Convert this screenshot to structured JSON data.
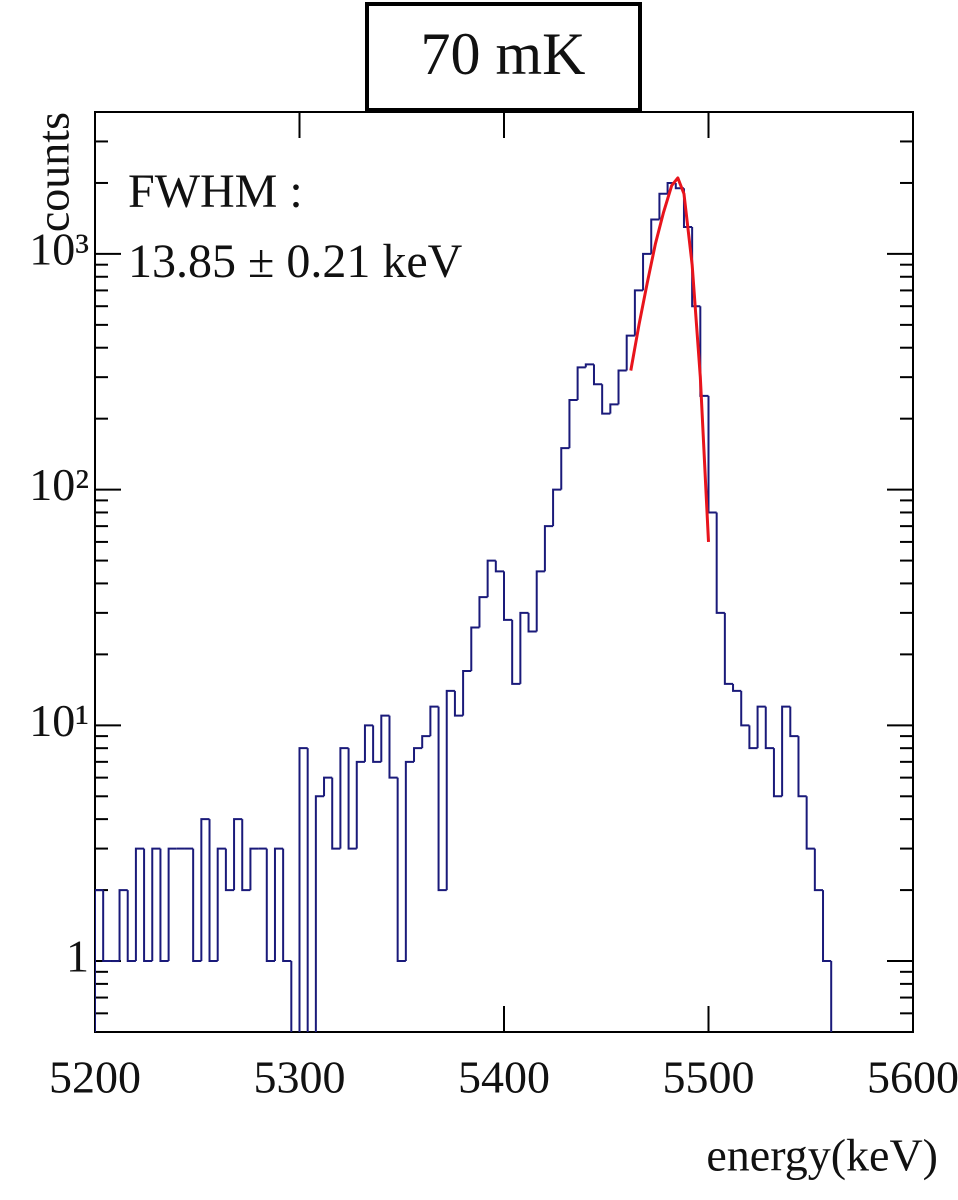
{
  "chart_data": {
    "type": "histogram",
    "title": "70 mK",
    "y_label": "counts",
    "x_label": "energy(keV)",
    "annotations": [
      "FWHM :",
      "13.85 ± 0.21 keV"
    ],
    "color": "#1a1a7a",
    "log_y": true,
    "xlim": [
      5200,
      5600
    ],
    "ylim": [
      0.5,
      4000
    ],
    "xticks": [
      5200,
      5300,
      5400,
      5500,
      5600
    ],
    "yticks": [
      1,
      {
        "value": 10,
        "label": "10¹"
      },
      {
        "value": 100,
        "label": "10²"
      },
      {
        "value": 1000,
        "label": "10³"
      }
    ],
    "bins": [
      5200,
      5204,
      5208,
      5212,
      5216,
      5220,
      5224,
      5228,
      5232,
      5236,
      5240,
      5244,
      5248,
      5252,
      5256,
      5260,
      5264,
      5268,
      5272,
      5276,
      5280,
      5284,
      5288,
      5292,
      5296,
      5300,
      5304,
      5308,
      5312,
      5316,
      5320,
      5324,
      5328,
      5332,
      5336,
      5340,
      5344,
      5348,
      5352,
      5356,
      5360,
      5364,
      5368,
      5372,
      5376,
      5380,
      5384,
      5388,
      5392,
      5396,
      5400,
      5404,
      5408,
      5412,
      5416,
      5420,
      5424,
      5428,
      5432,
      5436,
      5440,
      5444,
      5448,
      5452,
      5456,
      5460,
      5464,
      5468,
      5472,
      5476,
      5480,
      5484,
      5488,
      5492,
      5496,
      5500,
      5504,
      5508,
      5512,
      5516,
      5520,
      5524,
      5528,
      5532,
      5536,
      5540,
      5544,
      5548,
      5552,
      5556,
      5560,
      5564,
      5568,
      5572,
      5576,
      5580,
      5584,
      5588,
      5592,
      5596,
      5600
    ],
    "values": [
      2,
      1,
      1,
      2,
      1,
      3,
      1,
      3,
      1,
      3,
      3,
      3,
      1,
      4,
      1,
      3,
      2,
      4,
      2,
      3,
      3,
      1,
      3,
      1,
      0,
      8,
      0,
      5,
      6,
      3,
      8,
      3,
      7,
      10,
      7,
      11,
      6,
      1,
      7,
      8,
      9,
      12,
      2,
      14,
      11,
      17,
      26,
      35,
      50,
      45,
      28,
      15,
      30,
      25,
      45,
      70,
      100,
      150,
      240,
      330,
      340,
      280,
      210,
      230,
      320,
      450,
      700,
      1000,
      1400,
      1800,
      2000,
      1900,
      1300,
      600,
      250,
      80,
      30,
      15,
      14,
      10,
      8,
      12,
      8,
      5,
      12,
      9,
      5,
      3,
      2,
      1,
      0,
      0,
      0,
      0,
      0,
      0,
      0,
      0,
      0,
      0
    ],
    "fit": {
      "color": "#e8141c",
      "x": [
        5462,
        5466,
        5470,
        5474,
        5478,
        5482,
        5485,
        5488,
        5492,
        5496,
        5500
      ],
      "values": [
        320,
        500,
        750,
        1100,
        1500,
        1950,
        2100,
        1800,
        900,
        300,
        60
      ]
    }
  }
}
